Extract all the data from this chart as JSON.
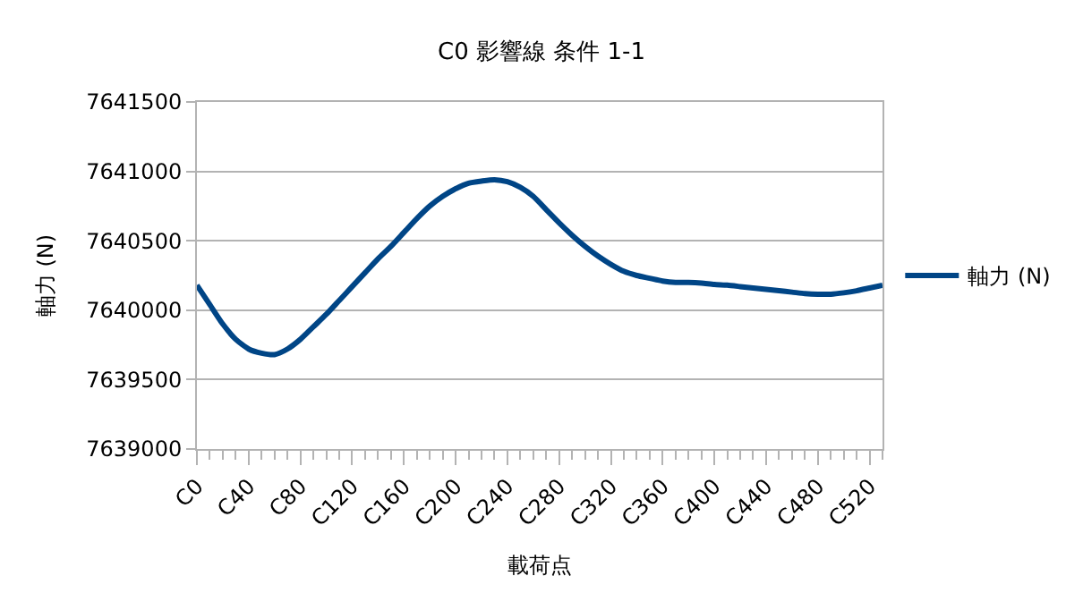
{
  "chart_data": {
    "type": "line",
    "title": "C0 影響線 条件 1-1",
    "xlabel": "載荷点",
    "ylabel": "軸力 (N)",
    "categories": [
      "C0",
      null,
      null,
      null,
      "C40",
      null,
      null,
      null,
      "C80",
      null,
      null,
      null,
      "C120",
      null,
      null,
      null,
      "C160",
      null,
      null,
      null,
      "C200",
      null,
      null,
      null,
      "C240",
      null,
      null,
      null,
      "C280",
      null,
      null,
      null,
      "C320",
      null,
      null,
      null,
      "C360",
      null,
      null,
      null,
      "C400",
      null,
      null,
      null,
      "C440",
      null,
      null,
      null,
      "C480",
      null,
      null,
      null,
      "C520",
      null
    ],
    "series": [
      {
        "name": "軸力 (N)",
        "color": "#004586",
        "values": [
          7640180,
          7640040,
          7639900,
          7639790,
          7639720,
          7639690,
          7639680,
          7639720,
          7639790,
          7639880,
          7639970,
          7640070,
          7640170,
          7640270,
          7640370,
          7640460,
          7640560,
          7640660,
          7640750,
          7640820,
          7640875,
          7640915,
          7640930,
          7640940,
          7640925,
          7640885,
          7640820,
          7640725,
          7640630,
          7640540,
          7640460,
          7640390,
          7640330,
          7640280,
          7640250,
          7640230,
          7640210,
          7640200,
          7640200,
          7640195,
          7640185,
          7640180,
          7640170,
          7640160,
          7640150,
          7640140,
          7640130,
          7640120,
          7640115,
          7640115,
          7640125,
          7640140,
          7640160,
          7640180
        ]
      }
    ],
    "ylim": [
      7639000,
      7641500
    ],
    "yticks": [
      7639000,
      7639500,
      7640000,
      7640500,
      7641000,
      7641500
    ],
    "grid": "y",
    "legend": "right",
    "marker": "none",
    "line_style": "solid"
  }
}
